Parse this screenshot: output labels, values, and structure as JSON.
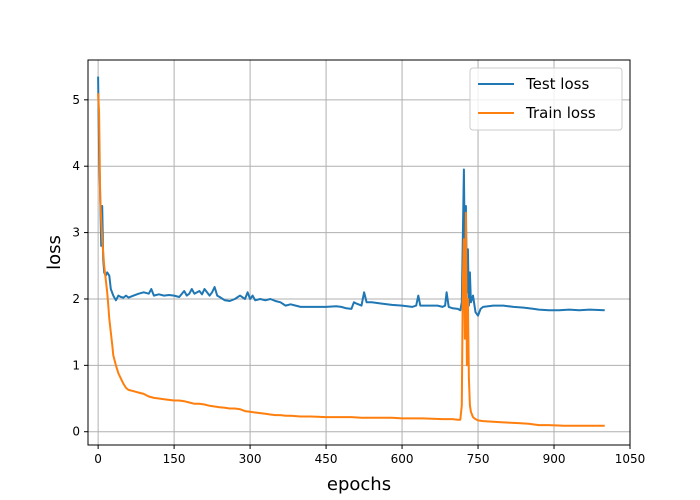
{
  "chart_data": {
    "type": "line",
    "title": "",
    "xlabel": "epochs",
    "ylabel": "loss",
    "xlim": [
      -20,
      1050
    ],
    "ylim": [
      -0.2,
      5.6
    ],
    "xticks": [
      0,
      150,
      300,
      450,
      600,
      750,
      900,
      1050
    ],
    "yticks": [
      0,
      1,
      2,
      3,
      4,
      5
    ],
    "grid": true,
    "legend_position": "top-right",
    "series": [
      {
        "name": "Test loss",
        "color": "#1f77b4",
        "points": [
          [
            0,
            5.35
          ],
          [
            2,
            4.2
          ],
          [
            4,
            3.55
          ],
          [
            6,
            2.8
          ],
          [
            8,
            3.4
          ],
          [
            10,
            2.6
          ],
          [
            12,
            2.4
          ],
          [
            15,
            2.35
          ],
          [
            18,
            2.4
          ],
          [
            22,
            2.35
          ],
          [
            25,
            2.15
          ],
          [
            30,
            2.05
          ],
          [
            35,
            1.98
          ],
          [
            40,
            2.05
          ],
          [
            45,
            2.03
          ],
          [
            50,
            2.02
          ],
          [
            55,
            2.05
          ],
          [
            60,
            2.02
          ],
          [
            70,
            2.05
          ],
          [
            80,
            2.08
          ],
          [
            90,
            2.1
          ],
          [
            100,
            2.08
          ],
          [
            105,
            2.15
          ],
          [
            110,
            2.05
          ],
          [
            120,
            2.07
          ],
          [
            130,
            2.05
          ],
          [
            140,
            2.06
          ],
          [
            150,
            2.05
          ],
          [
            160,
            2.03
          ],
          [
            170,
            2.12
          ],
          [
            175,
            2.05
          ],
          [
            180,
            2.08
          ],
          [
            185,
            2.15
          ],
          [
            190,
            2.08
          ],
          [
            200,
            2.12
          ],
          [
            205,
            2.07
          ],
          [
            210,
            2.15
          ],
          [
            220,
            2.05
          ],
          [
            225,
            2.1
          ],
          [
            230,
            2.18
          ],
          [
            235,
            2.05
          ],
          [
            240,
            2.03
          ],
          [
            250,
            1.98
          ],
          [
            260,
            1.97
          ],
          [
            270,
            2.0
          ],
          [
            280,
            2.05
          ],
          [
            290,
            2.0
          ],
          [
            295,
            2.1
          ],
          [
            300,
            2.0
          ],
          [
            305,
            2.05
          ],
          [
            310,
            1.98
          ],
          [
            320,
            2.0
          ],
          [
            330,
            1.98
          ],
          [
            340,
            2.0
          ],
          [
            350,
            1.97
          ],
          [
            360,
            1.95
          ],
          [
            370,
            1.9
          ],
          [
            380,
            1.92
          ],
          [
            390,
            1.9
          ],
          [
            400,
            1.88
          ],
          [
            420,
            1.88
          ],
          [
            450,
            1.88
          ],
          [
            470,
            1.89
          ],
          [
            480,
            1.88
          ],
          [
            490,
            1.86
          ],
          [
            500,
            1.85
          ],
          [
            505,
            1.95
          ],
          [
            510,
            1.93
          ],
          [
            520,
            1.9
          ],
          [
            525,
            2.1
          ],
          [
            530,
            1.95
          ],
          [
            540,
            1.95
          ],
          [
            560,
            1.93
          ],
          [
            580,
            1.91
          ],
          [
            600,
            1.9
          ],
          [
            620,
            1.88
          ],
          [
            628,
            1.9
          ],
          [
            632,
            2.05
          ],
          [
            636,
            1.9
          ],
          [
            650,
            1.9
          ],
          [
            670,
            1.9
          ],
          [
            680,
            1.88
          ],
          [
            685,
            1.9
          ],
          [
            688,
            2.1
          ],
          [
            692,
            1.88
          ],
          [
            700,
            1.86
          ],
          [
            710,
            1.85
          ],
          [
            715,
            1.83
          ],
          [
            718,
            1.95
          ],
          [
            722,
            3.95
          ],
          [
            724,
            2.5
          ],
          [
            726,
            3.4
          ],
          [
            728,
            2.1
          ],
          [
            730,
            2.75
          ],
          [
            732,
            1.9
          ],
          [
            734,
            2.4
          ],
          [
            736,
            1.95
          ],
          [
            740,
            2.05
          ],
          [
            745,
            1.8
          ],
          [
            750,
            1.75
          ],
          [
            755,
            1.85
          ],
          [
            760,
            1.88
          ],
          [
            780,
            1.9
          ],
          [
            800,
            1.9
          ],
          [
            820,
            1.88
          ],
          [
            840,
            1.87
          ],
          [
            860,
            1.85
          ],
          [
            870,
            1.84
          ],
          [
            890,
            1.83
          ],
          [
            910,
            1.83
          ],
          [
            930,
            1.84
          ],
          [
            950,
            1.83
          ],
          [
            970,
            1.84
          ],
          [
            1000,
            1.83
          ]
        ]
      },
      {
        "name": "Train loss",
        "color": "#ff7f0e",
        "points": [
          [
            0,
            5.1
          ],
          [
            2,
            4.8
          ],
          [
            4,
            3.5
          ],
          [
            6,
            3.2
          ],
          [
            8,
            2.9
          ],
          [
            10,
            2.7
          ],
          [
            12,
            2.5
          ],
          [
            15,
            2.3
          ],
          [
            18,
            2.1
          ],
          [
            20,
            1.9
          ],
          [
            22,
            1.7
          ],
          [
            25,
            1.5
          ],
          [
            28,
            1.3
          ],
          [
            30,
            1.15
          ],
          [
            35,
            1.0
          ],
          [
            40,
            0.88
          ],
          [
            45,
            0.8
          ],
          [
            50,
            0.72
          ],
          [
            55,
            0.66
          ],
          [
            60,
            0.63
          ],
          [
            70,
            0.61
          ],
          [
            80,
            0.59
          ],
          [
            90,
            0.57
          ],
          [
            100,
            0.53
          ],
          [
            110,
            0.51
          ],
          [
            120,
            0.5
          ],
          [
            130,
            0.49
          ],
          [
            140,
            0.48
          ],
          [
            150,
            0.47
          ],
          [
            160,
            0.47
          ],
          [
            170,
            0.46
          ],
          [
            180,
            0.44
          ],
          [
            190,
            0.42
          ],
          [
            200,
            0.42
          ],
          [
            210,
            0.41
          ],
          [
            220,
            0.39
          ],
          [
            230,
            0.38
          ],
          [
            240,
            0.37
          ],
          [
            250,
            0.36
          ],
          [
            260,
            0.35
          ],
          [
            270,
            0.35
          ],
          [
            280,
            0.34
          ],
          [
            290,
            0.31
          ],
          [
            300,
            0.3
          ],
          [
            310,
            0.29
          ],
          [
            320,
            0.28
          ],
          [
            330,
            0.27
          ],
          [
            340,
            0.26
          ],
          [
            350,
            0.25
          ],
          [
            360,
            0.25
          ],
          [
            370,
            0.24
          ],
          [
            380,
            0.24
          ],
          [
            400,
            0.23
          ],
          [
            420,
            0.23
          ],
          [
            450,
            0.22
          ],
          [
            480,
            0.22
          ],
          [
            500,
            0.22
          ],
          [
            520,
            0.21
          ],
          [
            530,
            0.21
          ],
          [
            550,
            0.21
          ],
          [
            580,
            0.21
          ],
          [
            600,
            0.2
          ],
          [
            640,
            0.2
          ],
          [
            680,
            0.19
          ],
          [
            700,
            0.19
          ],
          [
            710,
            0.18
          ],
          [
            715,
            0.18
          ],
          [
            718,
            0.4
          ],
          [
            720,
            2.2
          ],
          [
            722,
            2.9
          ],
          [
            724,
            1.4
          ],
          [
            726,
            3.3
          ],
          [
            728,
            1.0
          ],
          [
            730,
            2.0
          ],
          [
            732,
            0.8
          ],
          [
            734,
            0.4
          ],
          [
            736,
            0.3
          ],
          [
            740,
            0.22
          ],
          [
            745,
            0.19
          ],
          [
            750,
            0.17
          ],
          [
            760,
            0.16
          ],
          [
            780,
            0.15
          ],
          [
            800,
            0.14
          ],
          [
            830,
            0.13
          ],
          [
            850,
            0.12
          ],
          [
            870,
            0.1
          ],
          [
            890,
            0.1
          ],
          [
            920,
            0.09
          ],
          [
            950,
            0.09
          ],
          [
            980,
            0.09
          ],
          [
            1000,
            0.09
          ]
        ]
      }
    ]
  }
}
